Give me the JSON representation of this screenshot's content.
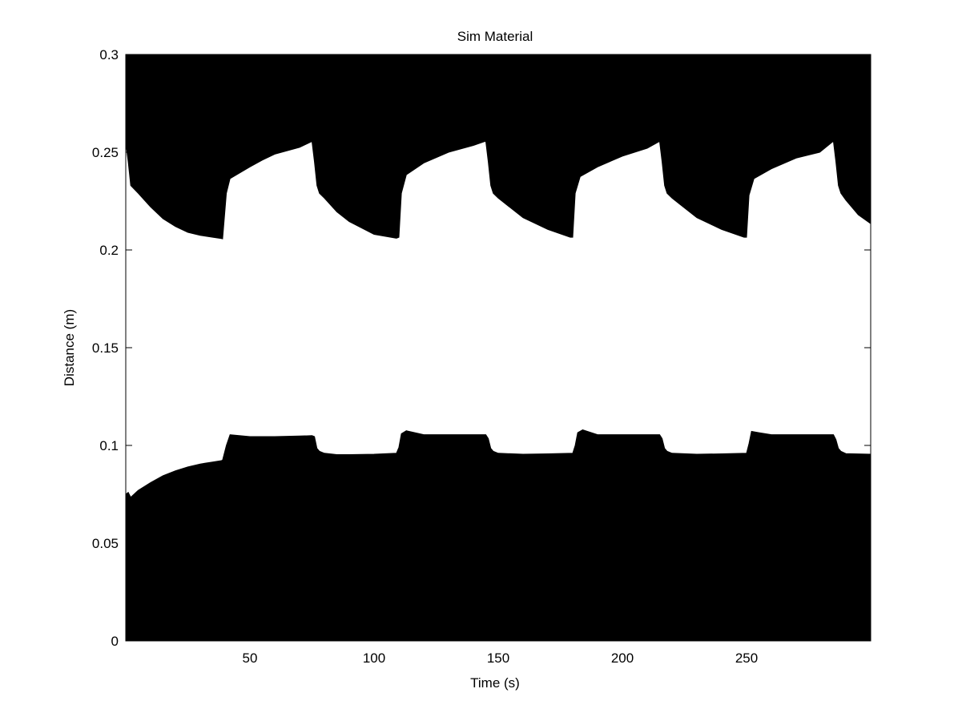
{
  "chart_data": {
    "type": "area",
    "title": "Sim Material",
    "xlabel": "Time (s)",
    "ylabel": "Distance (m)",
    "xlim": [
      0,
      300
    ],
    "ylim": [
      0,
      0.3
    ],
    "grid": false,
    "legend": "none",
    "fill_color": "#000000",
    "background_color": "#ffffff",
    "x_ticks": [
      {
        "value": 50,
        "label": "50"
      },
      {
        "value": 100,
        "label": "100"
      },
      {
        "value": 150,
        "label": "150"
      },
      {
        "value": 200,
        "label": "200"
      },
      {
        "value": 250,
        "label": "250"
      }
    ],
    "y_ticks": [
      {
        "value": 0,
        "label": "0"
      },
      {
        "value": 0.05,
        "label": "0.05"
      },
      {
        "value": 0.1,
        "label": "0.1"
      },
      {
        "value": 0.15,
        "label": "0.15"
      },
      {
        "value": 0.2,
        "label": "0.2"
      },
      {
        "value": 0.25,
        "label": "0.25"
      },
      {
        "value": 0.3,
        "label": "0.3"
      }
    ],
    "series": [
      {
        "fill": "below",
        "x": [
          0,
          1,
          2,
          5,
          10,
          15,
          20,
          25,
          30,
          35,
          38.5,
          39,
          40.5,
          42,
          50,
          55,
          60,
          70,
          75,
          76,
          77,
          78,
          80,
          85,
          90,
          100,
          109,
          110,
          111,
          113,
          120,
          130,
          140,
          145,
          146,
          147,
          148,
          150,
          160,
          170,
          180,
          181,
          182,
          184,
          190,
          200,
          210,
          215,
          216,
          217,
          218,
          220,
          230,
          240,
          250,
          251,
          252,
          255,
          260,
          270,
          285,
          286,
          287,
          288,
          290,
          300
        ],
        "y": [
          0.075,
          0.076,
          0.0735,
          0.077,
          0.081,
          0.0845,
          0.087,
          0.089,
          0.0905,
          0.0915,
          0.0922,
          0.0925,
          0.1,
          0.1055,
          0.1045,
          0.1045,
          0.1045,
          0.1048,
          0.105,
          0.1045,
          0.0985,
          0.097,
          0.096,
          0.0953,
          0.0953,
          0.0955,
          0.096,
          0.099,
          0.106,
          0.1075,
          0.1055,
          0.1055,
          0.1055,
          0.1055,
          0.1035,
          0.0985,
          0.097,
          0.096,
          0.0955,
          0.0957,
          0.096,
          0.1,
          0.1065,
          0.108,
          0.1055,
          0.1055,
          0.1055,
          0.1055,
          0.1035,
          0.0985,
          0.097,
          0.096,
          0.0955,
          0.0957,
          0.096,
          0.101,
          0.1072,
          0.1065,
          0.1055,
          0.1055,
          0.1055,
          0.103,
          0.0985,
          0.097,
          0.0958,
          0.0955
        ]
      },
      {
        "fill": "above",
        "x": [
          0,
          1,
          2,
          5,
          10,
          15,
          20,
          25,
          30,
          35,
          38.5,
          39,
          40.5,
          42,
          50,
          55,
          60,
          70,
          74.5,
          75,
          76,
          77,
          78,
          80,
          85,
          90,
          100,
          109,
          110,
          111,
          113,
          120,
          130,
          140,
          144.5,
          145,
          146,
          147,
          148,
          150,
          160,
          170,
          179,
          180,
          181,
          183,
          190,
          200,
          210,
          214.5,
          215,
          216,
          217,
          218,
          220,
          230,
          240,
          249,
          250,
          251,
          253,
          260,
          270,
          279.5,
          284.5,
          285,
          286,
          287,
          288,
          290,
          295,
          300
        ],
        "y": [
          0.255,
          0.245,
          0.233,
          0.229,
          0.222,
          0.216,
          0.212,
          0.209,
          0.2075,
          0.2065,
          0.2058,
          0.2057,
          0.229,
          0.2365,
          0.2425,
          0.246,
          0.249,
          0.2525,
          0.2552,
          0.2555,
          0.245,
          0.233,
          0.229,
          0.2265,
          0.2195,
          0.2145,
          0.208,
          0.206,
          0.2065,
          0.229,
          0.2385,
          0.2445,
          0.25,
          0.2535,
          0.2555,
          0.2555,
          0.245,
          0.233,
          0.229,
          0.2265,
          0.2165,
          0.2105,
          0.2065,
          0.2065,
          0.229,
          0.2375,
          0.2425,
          0.248,
          0.252,
          0.2552,
          0.2555,
          0.245,
          0.233,
          0.229,
          0.2265,
          0.2165,
          0.2105,
          0.2065,
          0.2065,
          0.228,
          0.2365,
          0.2415,
          0.247,
          0.25,
          0.2552,
          0.2555,
          0.245,
          0.233,
          0.229,
          0.2255,
          0.218,
          0.2135
        ]
      }
    ]
  }
}
